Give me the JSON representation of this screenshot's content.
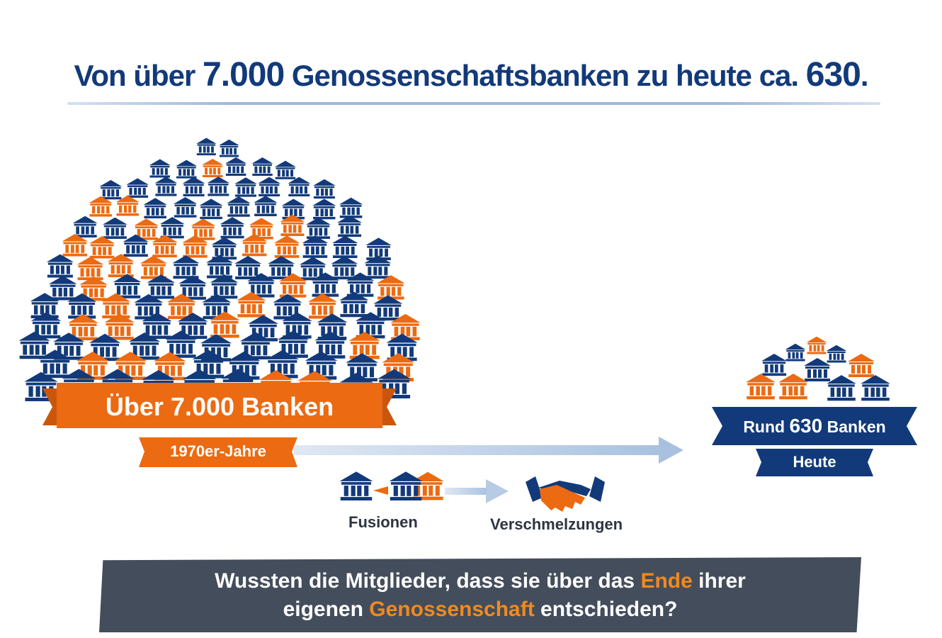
{
  "title": {
    "part1": "Von über ",
    "number1": "7.000",
    "part2": " Genossenschaftsbanken zu heute ca. ",
    "number2": "630",
    "part3": "."
  },
  "left_banner": {
    "main": "Über 7.000 Banken",
    "sub": "1970er-Jahre"
  },
  "right_banner": {
    "main_prefix": "Rund ",
    "main_number": "630",
    "main_suffix": " Banken",
    "sub": "Heute"
  },
  "process": {
    "step1_label": "Fusionen",
    "step2_label": "Verschmelzungen",
    "step1_icon": "merging-banks-icon",
    "step2_icon": "handshake-icon"
  },
  "question": {
    "line1_a": "Wussten die Mitglieder, dass sie über das ",
    "line1_hl": "Ende",
    "line1_b": " ihrer",
    "line2_a": "eigenen ",
    "line2_hl": "Genossenschaft",
    "line2_b": " entschieden?"
  },
  "colors": {
    "navy": "#123a7a",
    "orange": "#ec6a12",
    "arrow": "#b7cbe4",
    "question_bg": "#444d5c",
    "highlight": "#f08a1e"
  },
  "icons": {
    "bank": "bank-building-icon"
  }
}
